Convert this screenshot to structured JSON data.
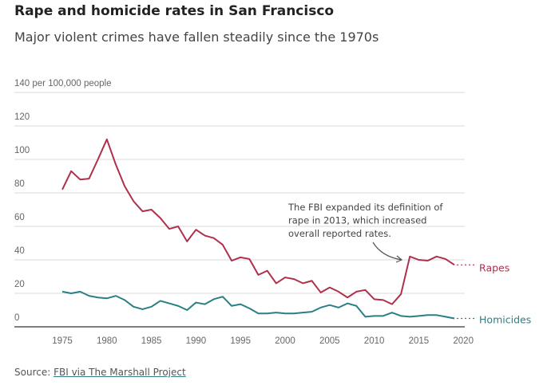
{
  "title": "Rape and homicide rates in San Francisco",
  "subtitle": "Major violent crimes have fallen steadily since the 1970s",
  "source_label": "Source: ",
  "source_link": "FBI via The Marshall Project",
  "chart_data": {
    "type": "line",
    "ylabel": "per 100,000 people",
    "ylim": [
      0,
      140
    ],
    "yticks": [
      0,
      20,
      40,
      60,
      80,
      100,
      120,
      140
    ],
    "ytick_labels": [
      "0",
      "20",
      "40",
      "60",
      "80",
      "100",
      "120",
      "140 per 100,000 people"
    ],
    "xlim": [
      1975,
      2020
    ],
    "xticks": [
      1975,
      1980,
      1985,
      1990,
      1995,
      2000,
      2005,
      2010,
      2015,
      2020
    ],
    "x": [
      1975,
      1976,
      1977,
      1978,
      1979,
      1980,
      1981,
      1982,
      1983,
      1984,
      1985,
      1986,
      1987,
      1988,
      1989,
      1990,
      1991,
      1992,
      1993,
      1994,
      1995,
      1996,
      1997,
      1998,
      1999,
      2000,
      2001,
      2002,
      2003,
      2004,
      2005,
      2006,
      2007,
      2008,
      2009,
      2010,
      2011,
      2012,
      2013,
      2014,
      2015,
      2016,
      2017,
      2018,
      2019
    ],
    "series": [
      {
        "name": "Rapes",
        "color": "#b0304c",
        "values": [
          82,
          93,
          88,
          88.5,
          100,
          112,
          97,
          84,
          75,
          69,
          70,
          65,
          58.5,
          60,
          51,
          58,
          54.5,
          53,
          49,
          39.5,
          41.5,
          40.5,
          31,
          33.5,
          26,
          29.5,
          28.5,
          26,
          27.5,
          20.5,
          23.5,
          21,
          17.5,
          21,
          22,
          16.5,
          16,
          13.5,
          19.5,
          42,
          40,
          39.5,
          42,
          40.5,
          37
        ]
      },
      {
        "name": "Homicides",
        "color": "#2a7f86",
        "values": [
          21,
          20,
          21,
          18.5,
          17.5,
          17,
          18.5,
          16,
          12,
          10.5,
          12,
          15.5,
          14,
          12.5,
          10,
          14.5,
          13.5,
          16.5,
          18,
          12.5,
          13.5,
          11,
          8,
          8,
          8.5,
          8,
          8,
          8.5,
          9,
          11.5,
          13,
          11.5,
          14,
          12.5,
          6,
          6.5,
          6.5,
          8.5,
          6.5,
          6,
          6.5,
          7,
          7,
          6,
          5
        ]
      }
    ],
    "annotation": [
      "The FBI expanded its definition of",
      "rape in 2013, which increased",
      "overall reported rates."
    ]
  }
}
